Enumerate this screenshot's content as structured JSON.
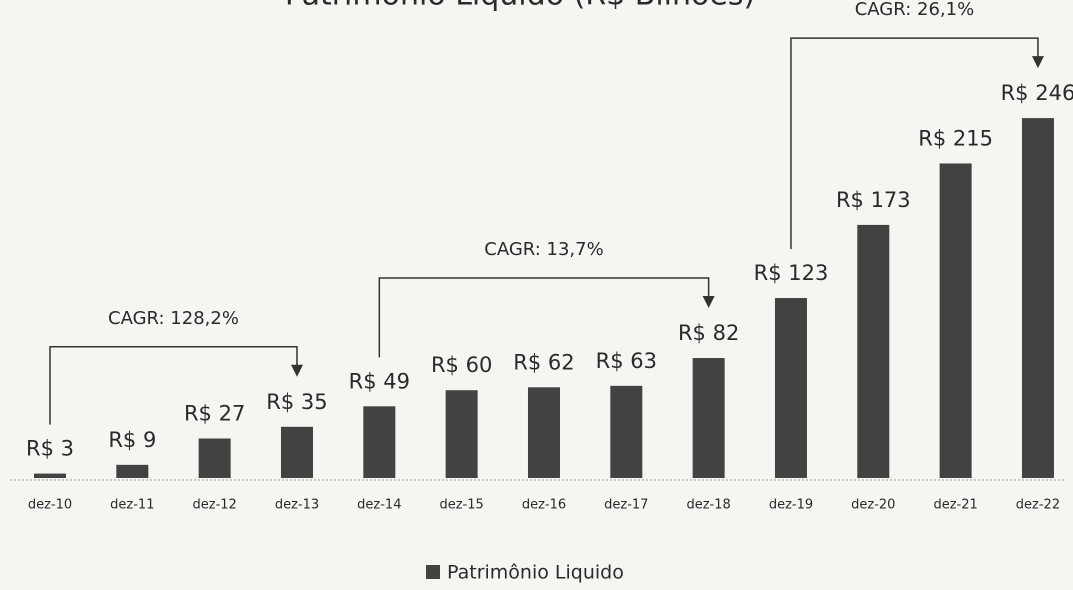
{
  "chart_data": {
    "type": "bar",
    "title": "Patrimônio Líquido (R$ Bilhões)",
    "categories": [
      "dez-10",
      "dez-11",
      "dez-12",
      "dez-13",
      "dez-14",
      "dez-15",
      "dez-16",
      "dez-17",
      "dez-18",
      "dez-19",
      "dez-20",
      "dez-21",
      "dez-22"
    ],
    "series": [
      {
        "name": "Patrimônio Liquido",
        "color": "#424242",
        "values": [
          3,
          9,
          27,
          35,
          49,
          60,
          62,
          63,
          82,
          123,
          173,
          215,
          246
        ],
        "value_labels": [
          "R$ 3",
          "R$ 9",
          "R$ 27",
          "R$ 35",
          "R$ 49",
          "R$ 60",
          "R$ 62",
          "R$ 63",
          "R$ 82",
          "R$ 123",
          "R$ 173",
          "R$ 215",
          "R$ 246"
        ]
      }
    ],
    "annotations": [
      {
        "text": "CAGR: 128,2%",
        "from": "dez-10",
        "to": "dez-13"
      },
      {
        "text": "CAGR: 13,7%",
        "from": "dez-14",
        "to": "dez-18"
      },
      {
        "text": "CAGR: 26,1%",
        "from": "dez-19",
        "to": "dez-22"
      }
    ],
    "legend": "bottom"
  }
}
